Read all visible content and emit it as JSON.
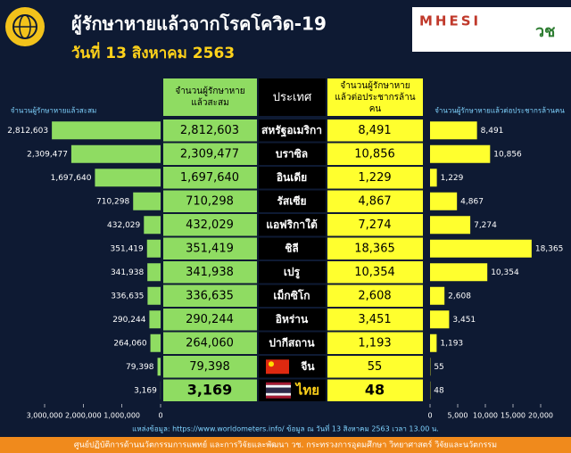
{
  "header": {
    "title": "ผู้รักษาหายแล้วจากโรคโควิด-19",
    "subtitle": "วันที่ 13 สิงหาคม 2563",
    "logos": [
      "MHESI",
      "วช"
    ]
  },
  "chart_data": {
    "type": "bar",
    "orientation": "horizontal",
    "category_header": "ประเทศ",
    "categories": [
      "สหรัฐอเมริกา",
      "บราซิล",
      "อินเดีย",
      "รัสเซีย",
      "แอฟริกาใต้",
      "ชิลี",
      "เปรู",
      "เม็กซิโก",
      "อิหร่าน",
      "ปากีสถาน",
      "จีน",
      "ไทย"
    ],
    "series": [
      {
        "name": "จำนวนผู้รักษาหายแล้วสะสม",
        "color": "#8fdc62",
        "direction": "left",
        "values": [
          2812603,
          2309477,
          1697640,
          710298,
          432029,
          351419,
          341938,
          336635,
          290244,
          264060,
          79398,
          3169
        ],
        "value_labels": [
          "2,812,603",
          "2,309,477",
          "1,697,640",
          "710,298",
          "432,029",
          "351,419",
          "341,938",
          "336,635",
          "290,244",
          "264,060",
          "79,398",
          "3,169"
        ],
        "xlim": [
          0,
          3000000
        ],
        "xticks": [
          {
            "value": 3000000,
            "label": "3,000,000"
          },
          {
            "value": 2000000,
            "label": "2,000,000"
          },
          {
            "value": 1000000,
            "label": "1,000,000"
          },
          0
        ]
      },
      {
        "name": "จำนวนผู้รักษาหายแล้วต่อประชากรล้านคน",
        "color": "#ffff2e",
        "direction": "right",
        "values": [
          8491,
          10856,
          1229,
          4867,
          7274,
          18365,
          10354,
          2608,
          3451,
          1193,
          55,
          48
        ],
        "value_labels": [
          "8,491",
          "10,856",
          "1,229",
          "4,867",
          "7,274",
          "18,365",
          "10,354",
          "2,608",
          "3,451",
          "1,193",
          "55",
          "48"
        ],
        "xlim": [
          0,
          20000
        ],
        "xticks": [
          0,
          {
            "value": 5000,
            "label": "5,000"
          },
          {
            "value": 10000,
            "label": "10,000"
          },
          {
            "value": 15000,
            "label": "15,000"
          },
          {
            "value": 20000,
            "label": "20,000"
          }
        ]
      }
    ]
  },
  "footer": {
    "source": "แหล่งข้อมูล: https://www.worldometers.info/ ข้อมูล ณ วันที่ 13 สิงหาคม 2563 เวลา 13.00 น.",
    "credit": "ศูนย์ปฏิบัติการด้านนวัตกรรมการแพทย์ และการวิจัยและพัฒนา วช.  กระทรวงการอุดมศึกษา วิทยาศาสตร์ วิจัยและนวัตกรรม"
  }
}
